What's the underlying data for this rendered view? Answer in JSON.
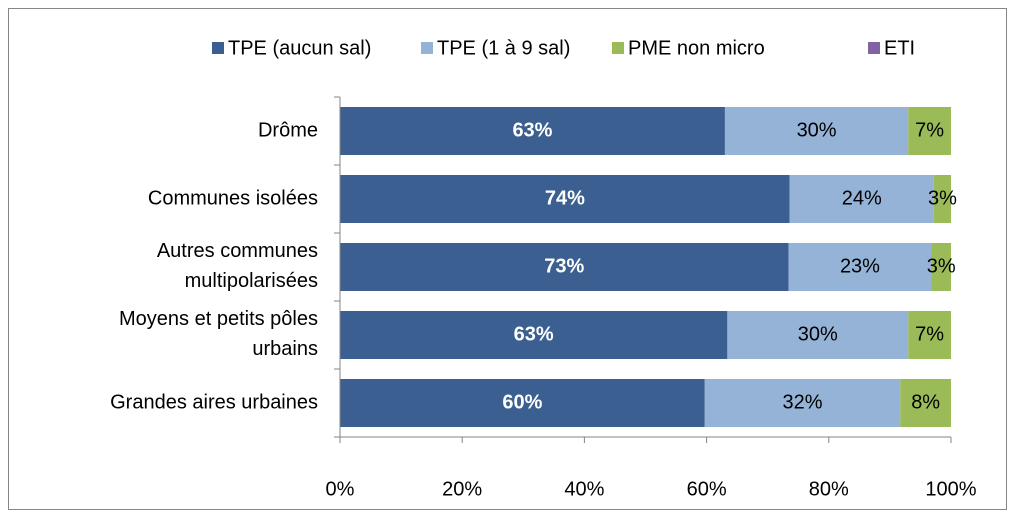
{
  "chart_data": {
    "type": "stacked-bar-horizontal",
    "categories": [
      "Drôme",
      "Communes isolées",
      "Autres communes\nmultipolarisées",
      "Moyens et petits pôles\nurbains",
      "Grandes aires urbaines"
    ],
    "series": [
      {
        "name": "TPE (aucun sal)",
        "color": "#3a5f90",
        "values": [
          63,
          73.6,
          73.4,
          63.4,
          59.7
        ],
        "value_labels": [
          "63%",
          "74%",
          "73%",
          "63%",
          "60%"
        ]
      },
      {
        "name": "TPE (1 à 9 sal)",
        "color": "#95b3d7",
        "values": [
          30,
          23.6,
          23.4,
          29.6,
          32.0
        ],
        "value_labels": [
          "30%",
          "24%",
          "23%",
          "30%",
          "32%"
        ]
      },
      {
        "name": "PME non micro",
        "color": "#9bbb59",
        "values": [
          7,
          2.8,
          3.2,
          7.0,
          8.3
        ],
        "value_labels": [
          "7%",
          "3%",
          "3%",
          "7%",
          "8%"
        ]
      },
      {
        "name": "ETI",
        "color": "#8064a2",
        "values": [
          0,
          0,
          0,
          0,
          0
        ]
      }
    ],
    "xlim": [
      0,
      100
    ],
    "xticks": [
      {
        "value": 0,
        "label": "0%"
      },
      {
        "value": 20,
        "label": "20%"
      },
      {
        "value": 40,
        "label": "40%"
      },
      {
        "value": 60,
        "label": "60%"
      },
      {
        "value": 80,
        "label": "80%"
      },
      {
        "value": 100,
        "label": "100%"
      }
    ],
    "legend": "top"
  }
}
